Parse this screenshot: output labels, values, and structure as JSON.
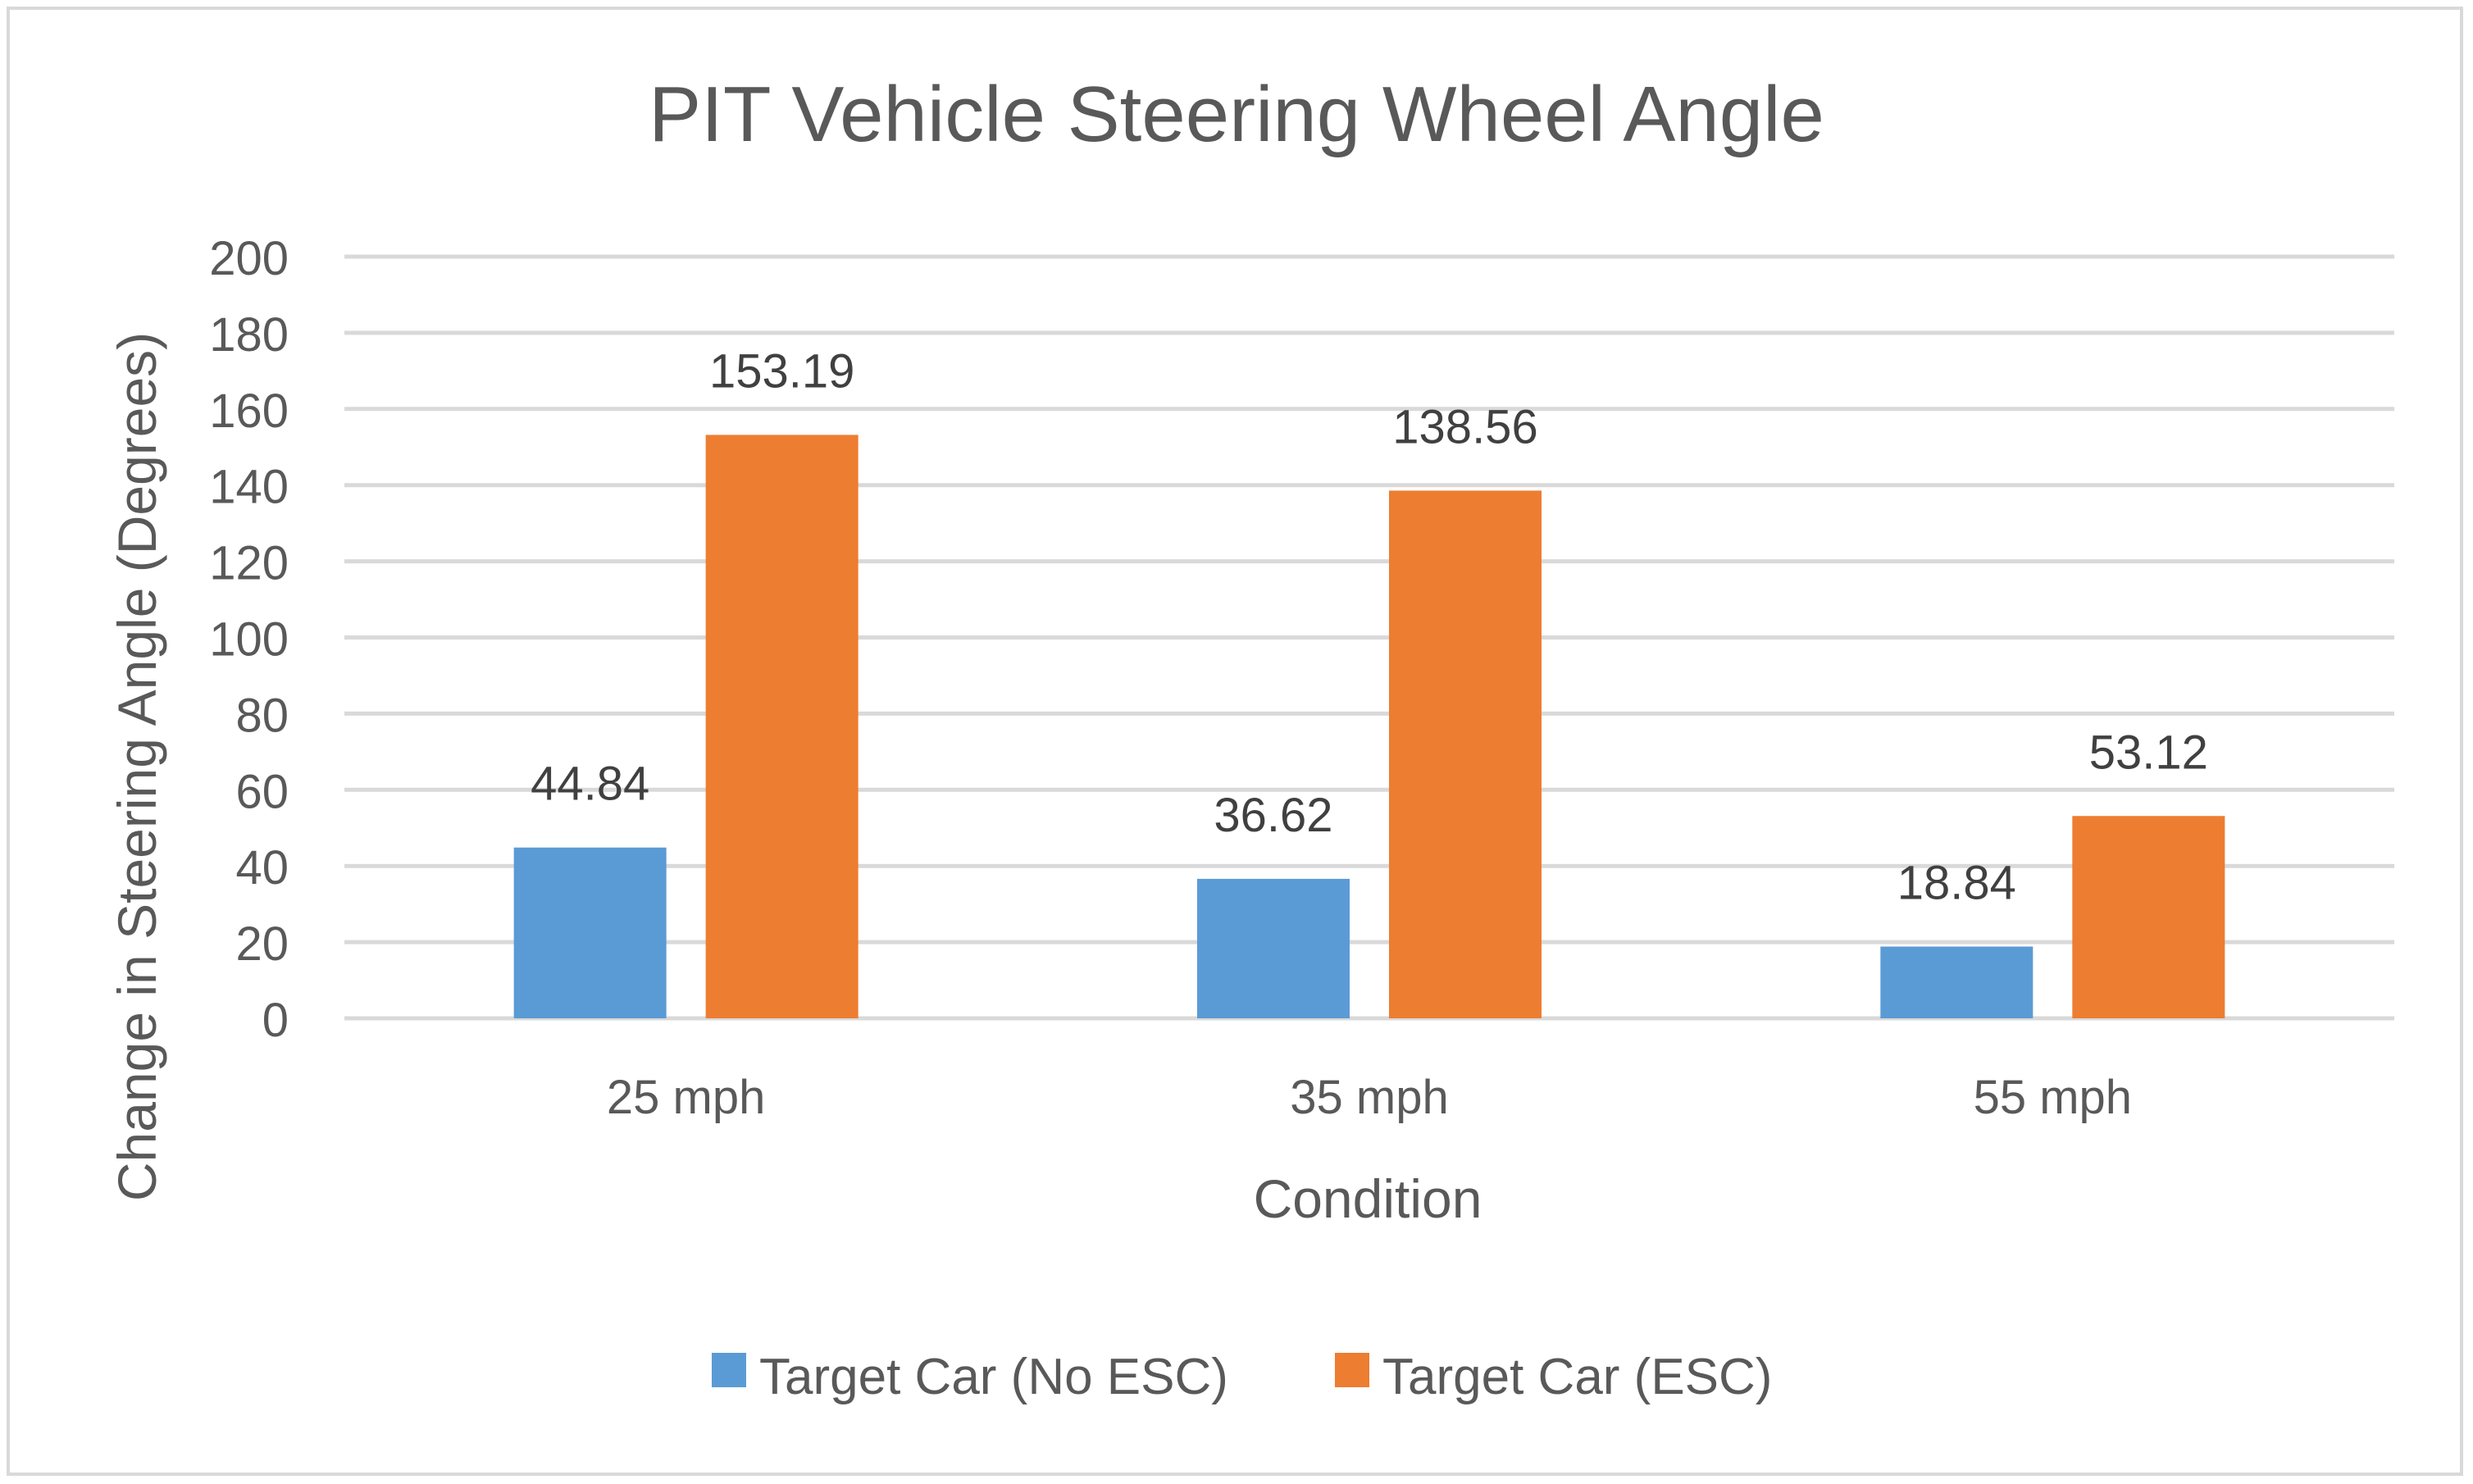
{
  "chart_data": {
    "type": "bar",
    "title": "PIT Vehicle Steering Wheel Angle",
    "xlabel": "Condition",
    "ylabel": "Change in Steering Angle (Degrees)",
    "categories": [
      "25 mph",
      "35 mph",
      "55 mph"
    ],
    "series": [
      {
        "name": "Target Car (No ESC)",
        "color": "#5B9BD5",
        "values": [
          44.84,
          36.62,
          18.84
        ],
        "labels": [
          "44.84",
          "36.62",
          "18.84"
        ]
      },
      {
        "name": "Target Car (ESC)",
        "color": "#ED7D31",
        "values": [
          153.19,
          138.56,
          53.12
        ],
        "labels": [
          "153.19",
          "138.56",
          "53.12"
        ]
      }
    ],
    "ylim": [
      0,
      200
    ],
    "yticks": [
      0,
      20,
      40,
      60,
      80,
      100,
      120,
      140,
      160,
      180,
      200
    ],
    "ytick_labels": [
      "0",
      "20",
      "40",
      "60",
      "80",
      "100",
      "120",
      "140",
      "160",
      "180",
      "200"
    ],
    "grid": true,
    "legend": "bottom",
    "data_labels": true
  }
}
